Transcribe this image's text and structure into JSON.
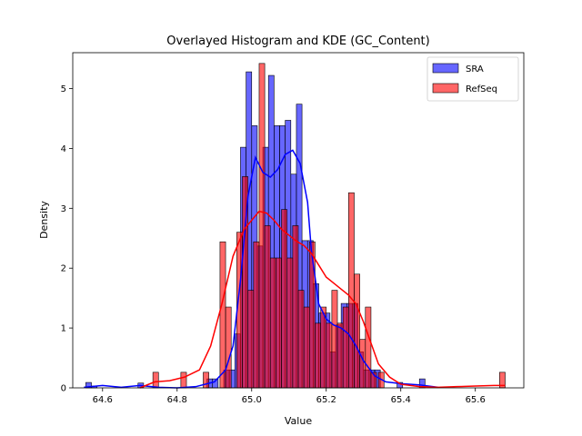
{
  "chart_data": {
    "type": "bar",
    "title": "Overlayed Histogram and KDE (GC_Content)",
    "xlabel": "Value",
    "ylabel": "Density",
    "xlim": [
      64.52,
      65.73
    ],
    "ylim": [
      0,
      5.6
    ],
    "x_ticks": [
      64.6,
      64.8,
      65.0,
      65.2,
      65.4,
      65.6
    ],
    "x_tick_labels": [
      "64.6",
      "64.8",
      "65.0",
      "65.2",
      "65.4",
      "65.6"
    ],
    "y_ticks": [
      0,
      1,
      2,
      3,
      4,
      5
    ],
    "y_tick_labels": [
      "0",
      "1",
      "2",
      "3",
      "4",
      "5"
    ],
    "grid": false,
    "legend_position": "top-right",
    "series": [
      {
        "name": "SRA",
        "color": "#0000ff",
        "bins": [
          {
            "x0": 64.555,
            "x1": 64.57,
            "y": 0.09
          },
          {
            "x0": 64.57,
            "x1": 64.585,
            "y": 0.03
          },
          {
            "x0": 64.695,
            "x1": 64.71,
            "y": 0.08
          },
          {
            "x0": 64.88,
            "x1": 64.895,
            "y": 0.15
          },
          {
            "x0": 64.895,
            "x1": 64.91,
            "y": 0.15
          },
          {
            "x0": 64.925,
            "x1": 64.94,
            "y": 0.3
          },
          {
            "x0": 64.94,
            "x1": 64.955,
            "y": 0.3
          },
          {
            "x0": 64.955,
            "x1": 64.97,
            "y": 0.9
          },
          {
            "x0": 64.97,
            "x1": 64.985,
            "y": 4.02
          },
          {
            "x0": 64.985,
            "x1": 65.0,
            "y": 5.28
          },
          {
            "x0": 65.0,
            "x1": 65.015,
            "y": 4.38
          },
          {
            "x0": 65.015,
            "x1": 65.03,
            "y": 2.37
          },
          {
            "x0": 65.03,
            "x1": 65.045,
            "y": 4.02
          },
          {
            "x0": 65.045,
            "x1": 65.06,
            "y": 5.22
          },
          {
            "x0": 65.06,
            "x1": 65.075,
            "y": 4.38
          },
          {
            "x0": 65.075,
            "x1": 65.09,
            "y": 4.38
          },
          {
            "x0": 65.09,
            "x1": 65.105,
            "y": 4.47
          },
          {
            "x0": 65.105,
            "x1": 65.12,
            "y": 3.57
          },
          {
            "x0": 65.12,
            "x1": 65.135,
            "y": 4.74
          },
          {
            "x0": 65.135,
            "x1": 65.15,
            "y": 2.46
          },
          {
            "x0": 65.15,
            "x1": 65.165,
            "y": 2.46
          },
          {
            "x0": 65.165,
            "x1": 65.18,
            "y": 1.74
          },
          {
            "x0": 65.18,
            "x1": 65.195,
            "y": 1.25
          },
          {
            "x0": 65.195,
            "x1": 65.21,
            "y": 1.25
          },
          {
            "x0": 65.21,
            "x1": 65.225,
            "y": 0.6
          },
          {
            "x0": 65.225,
            "x1": 65.24,
            "y": 1.05
          },
          {
            "x0": 65.24,
            "x1": 65.255,
            "y": 1.41
          },
          {
            "x0": 65.255,
            "x1": 65.27,
            "y": 1.41
          },
          {
            "x0": 65.27,
            "x1": 65.285,
            "y": 1.41
          },
          {
            "x0": 65.285,
            "x1": 65.3,
            "y": 0.6
          },
          {
            "x0": 65.3,
            "x1": 65.315,
            "y": 0.3
          },
          {
            "x0": 65.315,
            "x1": 65.33,
            "y": 0.3
          },
          {
            "x0": 65.33,
            "x1": 65.345,
            "y": 0.3
          },
          {
            "x0": 65.39,
            "x1": 65.405,
            "y": 0.09
          },
          {
            "x0": 65.45,
            "x1": 65.465,
            "y": 0.15
          }
        ],
        "kde": [
          {
            "x": 64.55,
            "y": 0.01
          },
          {
            "x": 64.6,
            "y": 0.04
          },
          {
            "x": 64.65,
            "y": 0.01
          },
          {
            "x": 64.7,
            "y": 0.04
          },
          {
            "x": 64.75,
            "y": 0.01
          },
          {
            "x": 64.8,
            "y": 0.0
          },
          {
            "x": 64.85,
            "y": 0.02
          },
          {
            "x": 64.9,
            "y": 0.1
          },
          {
            "x": 64.93,
            "y": 0.3
          },
          {
            "x": 64.95,
            "y": 0.7
          },
          {
            "x": 64.97,
            "y": 1.8
          },
          {
            "x": 64.99,
            "y": 3.2
          },
          {
            "x": 65.01,
            "y": 3.85
          },
          {
            "x": 65.03,
            "y": 3.6
          },
          {
            "x": 65.05,
            "y": 3.52
          },
          {
            "x": 65.07,
            "y": 3.65
          },
          {
            "x": 65.09,
            "y": 3.9
          },
          {
            "x": 65.11,
            "y": 3.97
          },
          {
            "x": 65.13,
            "y": 3.75
          },
          {
            "x": 65.15,
            "y": 3.1
          },
          {
            "x": 65.16,
            "y": 2.3
          },
          {
            "x": 65.18,
            "y": 1.4
          },
          {
            "x": 65.2,
            "y": 1.15
          },
          {
            "x": 65.22,
            "y": 1.05
          },
          {
            "x": 65.24,
            "y": 1.0
          },
          {
            "x": 65.26,
            "y": 0.9
          },
          {
            "x": 65.28,
            "y": 0.7
          },
          {
            "x": 65.3,
            "y": 0.45
          },
          {
            "x": 65.33,
            "y": 0.2
          },
          {
            "x": 65.36,
            "y": 0.1
          },
          {
            "x": 65.4,
            "y": 0.07
          },
          {
            "x": 65.45,
            "y": 0.05
          },
          {
            "x": 65.5,
            "y": 0.01
          }
        ]
      },
      {
        "name": "RefSeq",
        "color": "#ff0000",
        "bins": [
          {
            "x0": 64.735,
            "x1": 64.75,
            "y": 0.26
          },
          {
            "x0": 64.81,
            "x1": 64.825,
            "y": 0.26
          },
          {
            "x0": 64.87,
            "x1": 64.885,
            "y": 0.26
          },
          {
            "x0": 64.915,
            "x1": 64.93,
            "y": 2.44
          },
          {
            "x0": 64.93,
            "x1": 64.945,
            "y": 1.35
          },
          {
            "x0": 64.96,
            "x1": 64.975,
            "y": 2.6
          },
          {
            "x0": 64.975,
            "x1": 64.99,
            "y": 3.53
          },
          {
            "x0": 64.99,
            "x1": 65.005,
            "y": 1.63
          },
          {
            "x0": 65.005,
            "x1": 65.02,
            "y": 2.44
          },
          {
            "x0": 65.02,
            "x1": 65.035,
            "y": 5.42
          },
          {
            "x0": 65.035,
            "x1": 65.05,
            "y": 2.71
          },
          {
            "x0": 65.05,
            "x1": 65.065,
            "y": 2.17
          },
          {
            "x0": 65.065,
            "x1": 65.08,
            "y": 2.17
          },
          {
            "x0": 65.08,
            "x1": 65.095,
            "y": 2.98
          },
          {
            "x0": 65.095,
            "x1": 65.11,
            "y": 2.17
          },
          {
            "x0": 65.11,
            "x1": 65.125,
            "y": 2.71
          },
          {
            "x0": 65.125,
            "x1": 65.14,
            "y": 1.63
          },
          {
            "x0": 65.14,
            "x1": 65.155,
            "y": 1.35
          },
          {
            "x0": 65.155,
            "x1": 65.17,
            "y": 2.44
          },
          {
            "x0": 65.17,
            "x1": 65.185,
            "y": 1.08
          },
          {
            "x0": 65.185,
            "x1": 65.2,
            "y": 1.35
          },
          {
            "x0": 65.2,
            "x1": 65.215,
            "y": 1.08
          },
          {
            "x0": 65.215,
            "x1": 65.23,
            "y": 1.63
          },
          {
            "x0": 65.23,
            "x1": 65.245,
            "y": 1.08
          },
          {
            "x0": 65.245,
            "x1": 65.26,
            "y": 1.35
          },
          {
            "x0": 65.26,
            "x1": 65.275,
            "y": 3.26
          },
          {
            "x0": 65.275,
            "x1": 65.29,
            "y": 1.9
          },
          {
            "x0": 65.29,
            "x1": 65.305,
            "y": 0.81
          },
          {
            "x0": 65.305,
            "x1": 65.32,
            "y": 1.35
          },
          {
            "x0": 65.32,
            "x1": 65.335,
            "y": 0.26
          },
          {
            "x0": 65.34,
            "x1": 65.355,
            "y": 0.26
          },
          {
            "x0": 65.665,
            "x1": 65.68,
            "y": 0.26
          }
        ],
        "kde": [
          {
            "x": 64.7,
            "y": 0.0
          },
          {
            "x": 64.74,
            "y": 0.1
          },
          {
            "x": 64.78,
            "y": 0.12
          },
          {
            "x": 64.82,
            "y": 0.18
          },
          {
            "x": 64.86,
            "y": 0.3
          },
          {
            "x": 64.89,
            "y": 0.7
          },
          {
            "x": 64.92,
            "y": 1.4
          },
          {
            "x": 64.95,
            "y": 2.2
          },
          {
            "x": 64.98,
            "y": 2.65
          },
          {
            "x": 65.0,
            "y": 2.8
          },
          {
            "x": 65.02,
            "y": 2.95
          },
          {
            "x": 65.04,
            "y": 2.92
          },
          {
            "x": 65.06,
            "y": 2.8
          },
          {
            "x": 65.08,
            "y": 2.65
          },
          {
            "x": 65.1,
            "y": 2.55
          },
          {
            "x": 65.12,
            "y": 2.45
          },
          {
            "x": 65.14,
            "y": 2.38
          },
          {
            "x": 65.16,
            "y": 2.25
          },
          {
            "x": 65.18,
            "y": 2.05
          },
          {
            "x": 65.2,
            "y": 1.85
          },
          {
            "x": 65.22,
            "y": 1.75
          },
          {
            "x": 65.24,
            "y": 1.65
          },
          {
            "x": 65.26,
            "y": 1.55
          },
          {
            "x": 65.28,
            "y": 1.4
          },
          {
            "x": 65.3,
            "y": 1.1
          },
          {
            "x": 65.32,
            "y": 0.75
          },
          {
            "x": 65.34,
            "y": 0.4
          },
          {
            "x": 65.37,
            "y": 0.18
          },
          {
            "x": 65.4,
            "y": 0.06
          },
          {
            "x": 65.45,
            "y": 0.02
          },
          {
            "x": 65.5,
            "y": 0.01
          },
          {
            "x": 65.55,
            "y": 0.02
          },
          {
            "x": 65.6,
            "y": 0.03
          },
          {
            "x": 65.65,
            "y": 0.04
          },
          {
            "x": 65.68,
            "y": 0.04
          }
        ]
      }
    ]
  }
}
